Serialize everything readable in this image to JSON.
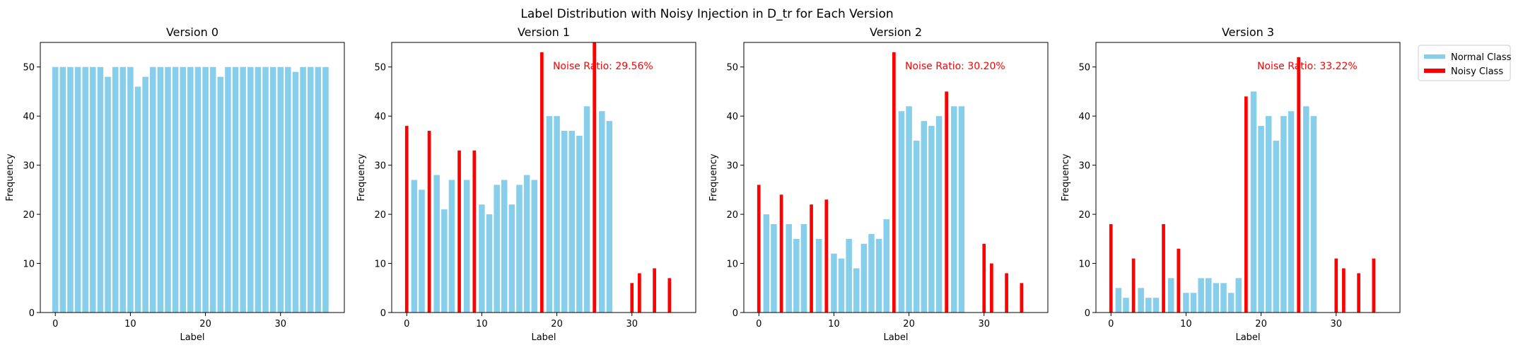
{
  "figure": {
    "title": "Label Distribution with Noisy Injection in D_tr for Each Version"
  },
  "legend": {
    "placement": "outside-top-right",
    "entries": [
      {
        "label": "Normal Class",
        "color": "#87CEEB"
      },
      {
        "label": "Noisy Class",
        "color": "#FF0000"
      }
    ]
  },
  "colors": {
    "normal": "#87CEEB",
    "noisy": "#FF0000",
    "annotation": "#FF0000"
  },
  "chart_data": [
    {
      "type": "bar",
      "title": "Version 0",
      "xlabel": "Label",
      "ylabel": "Frequency",
      "xlim": [
        -2,
        38.5
      ],
      "ylim": [
        0,
        55
      ],
      "xticks": [
        0,
        10,
        20,
        30
      ],
      "yticks": [
        0,
        10,
        20,
        30,
        40,
        50
      ],
      "annotation": "",
      "noisy_labels": [],
      "x": [
        0,
        1,
        2,
        3,
        4,
        5,
        6,
        7,
        8,
        9,
        10,
        11,
        12,
        13,
        14,
        15,
        16,
        17,
        18,
        19,
        20,
        21,
        22,
        23,
        24,
        25,
        26,
        27,
        28,
        29,
        30,
        31,
        32,
        33,
        34,
        35,
        36
      ],
      "values": [
        50,
        50,
        50,
        50,
        50,
        50,
        50,
        48,
        50,
        50,
        50,
        46,
        48,
        50,
        50,
        50,
        50,
        50,
        50,
        50,
        50,
        50,
        48,
        50,
        50,
        50,
        50,
        50,
        50,
        50,
        50,
        50,
        49,
        50,
        50,
        50,
        50
      ]
    },
    {
      "type": "bar",
      "title": "Version 1",
      "xlabel": "Label",
      "ylabel": "Frequency",
      "xlim": [
        -2,
        38.5
      ],
      "ylim": [
        0,
        55
      ],
      "xticks": [
        0,
        10,
        20,
        30
      ],
      "yticks": [
        0,
        10,
        20,
        30,
        40,
        50
      ],
      "annotation": "Noise Ratio: 29.56%",
      "noisy_labels": [
        0,
        3,
        7,
        9,
        18,
        25,
        30,
        31,
        33,
        35
      ],
      "x": [
        0,
        1,
        2,
        3,
        4,
        5,
        6,
        7,
        8,
        9,
        10,
        11,
        12,
        13,
        14,
        15,
        16,
        17,
        18,
        19,
        20,
        21,
        22,
        23,
        24,
        25,
        26,
        27,
        30,
        31,
        33,
        35
      ],
      "values": [
        38,
        27,
        25,
        37,
        28,
        21,
        27,
        33,
        27,
        33,
        22,
        20,
        26,
        27,
        22,
        26,
        28,
        27,
        53,
        40,
        40,
        37,
        37,
        36,
        42,
        55,
        41,
        39,
        6,
        8,
        9,
        7
      ]
    },
    {
      "type": "bar",
      "title": "Version 2",
      "xlabel": "Label",
      "ylabel": "Frequency",
      "xlim": [
        -2,
        38.5
      ],
      "ylim": [
        0,
        55
      ],
      "xticks": [
        0,
        10,
        20,
        30
      ],
      "yticks": [
        0,
        10,
        20,
        30,
        40,
        50
      ],
      "annotation": "Noise Ratio: 30.20%",
      "noisy_labels": [
        0,
        3,
        7,
        9,
        18,
        25,
        30,
        31,
        33,
        35
      ],
      "x": [
        0,
        1,
        2,
        3,
        4,
        5,
        6,
        7,
        8,
        9,
        10,
        11,
        12,
        13,
        14,
        15,
        16,
        17,
        18,
        19,
        20,
        21,
        22,
        23,
        24,
        25,
        26,
        27,
        30,
        31,
        33,
        35
      ],
      "values": [
        26,
        20,
        18,
        24,
        18,
        15,
        18,
        22,
        15,
        23,
        12,
        11,
        15,
        9,
        14,
        16,
        15,
        19,
        53,
        41,
        42,
        35,
        39,
        38,
        40,
        45,
        42,
        42,
        14,
        10,
        8,
        6
      ]
    },
    {
      "type": "bar",
      "title": "Version 3",
      "xlabel": "Label",
      "ylabel": "Frequency",
      "xlim": [
        -2,
        38.5
      ],
      "ylim": [
        0,
        55
      ],
      "xticks": [
        0,
        10,
        20,
        30
      ],
      "yticks": [
        0,
        10,
        20,
        30,
        40,
        50
      ],
      "annotation": "Noise Ratio: 33.22%",
      "noisy_labels": [
        0,
        3,
        7,
        9,
        18,
        25,
        30,
        31,
        33,
        35
      ],
      "x": [
        0,
        1,
        2,
        3,
        4,
        5,
        6,
        7,
        8,
        9,
        10,
        11,
        12,
        13,
        14,
        15,
        16,
        17,
        18,
        19,
        20,
        21,
        22,
        23,
        24,
        25,
        26,
        27,
        30,
        31,
        33,
        35
      ],
      "values": [
        18,
        5,
        3,
        11,
        5,
        3,
        3,
        18,
        7,
        13,
        4,
        4,
        7,
        7,
        6,
        6,
        4,
        7,
        44,
        45,
        38,
        40,
        35,
        40,
        41,
        52,
        42,
        40,
        11,
        9,
        8,
        11
      ]
    }
  ]
}
